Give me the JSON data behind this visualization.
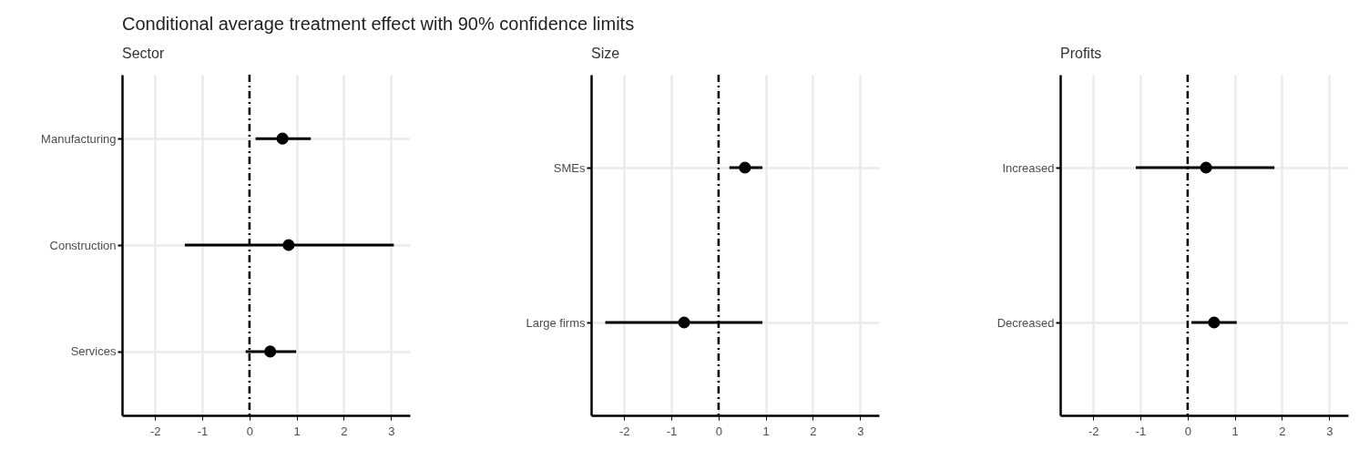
{
  "chart_data": [
    {
      "type": "scatter",
      "orientation": "horizontal",
      "title": "Conditional average treatment effect with 90% confidence limits",
      "subtitle": "Sector",
      "categories": [
        "Manufacturing",
        "Construction",
        "Services"
      ],
      "values": [
        0.7,
        0.83,
        0.44
      ],
      "errors": [
        [
          0.13,
          1.3
        ],
        [
          -1.37,
          3.06
        ],
        [
          -0.08,
          0.99
        ]
      ],
      "color": "#000000",
      "xlim": [
        -2.7,
        3.4
      ],
      "xticks": [
        -2,
        -1,
        0,
        1,
        2,
        3
      ],
      "grid": true,
      "marker": "circle",
      "ref_lines": [
        {
          "axis": "x",
          "value": 0,
          "line_style": "dashed",
          "color": "#000000"
        }
      ]
    },
    {
      "type": "scatter",
      "orientation": "horizontal",
      "subtitle": "Size",
      "categories": [
        "SMEs",
        "Large firms"
      ],
      "values": [
        0.56,
        -0.73
      ],
      "errors": [
        [
          0.23,
          0.93
        ],
        [
          -2.4,
          0.93
        ]
      ],
      "color": "#000000",
      "xlim": [
        -2.7,
        3.4
      ],
      "xticks": [
        -2,
        -1,
        0,
        1,
        2,
        3
      ],
      "grid": true,
      "marker": "circle",
      "ref_lines": [
        {
          "axis": "x",
          "value": 0,
          "line_style": "dashed",
          "color": "#000000"
        }
      ]
    },
    {
      "type": "scatter",
      "orientation": "horizontal",
      "subtitle": "Profits",
      "categories": [
        "Increased",
        "Decreased"
      ],
      "values": [
        0.39,
        0.56
      ],
      "errors": [
        [
          -1.1,
          1.84
        ],
        [
          0.08,
          1.04
        ]
      ],
      "color": "#000000",
      "xlim": [
        -2.7,
        3.4
      ],
      "xticks": [
        -2,
        -1,
        0,
        1,
        2,
        3
      ],
      "grid": true,
      "marker": "circle",
      "ref_lines": [
        {
          "axis": "x",
          "value": 0,
          "line_style": "dashed",
          "color": "#000000"
        }
      ]
    }
  ]
}
